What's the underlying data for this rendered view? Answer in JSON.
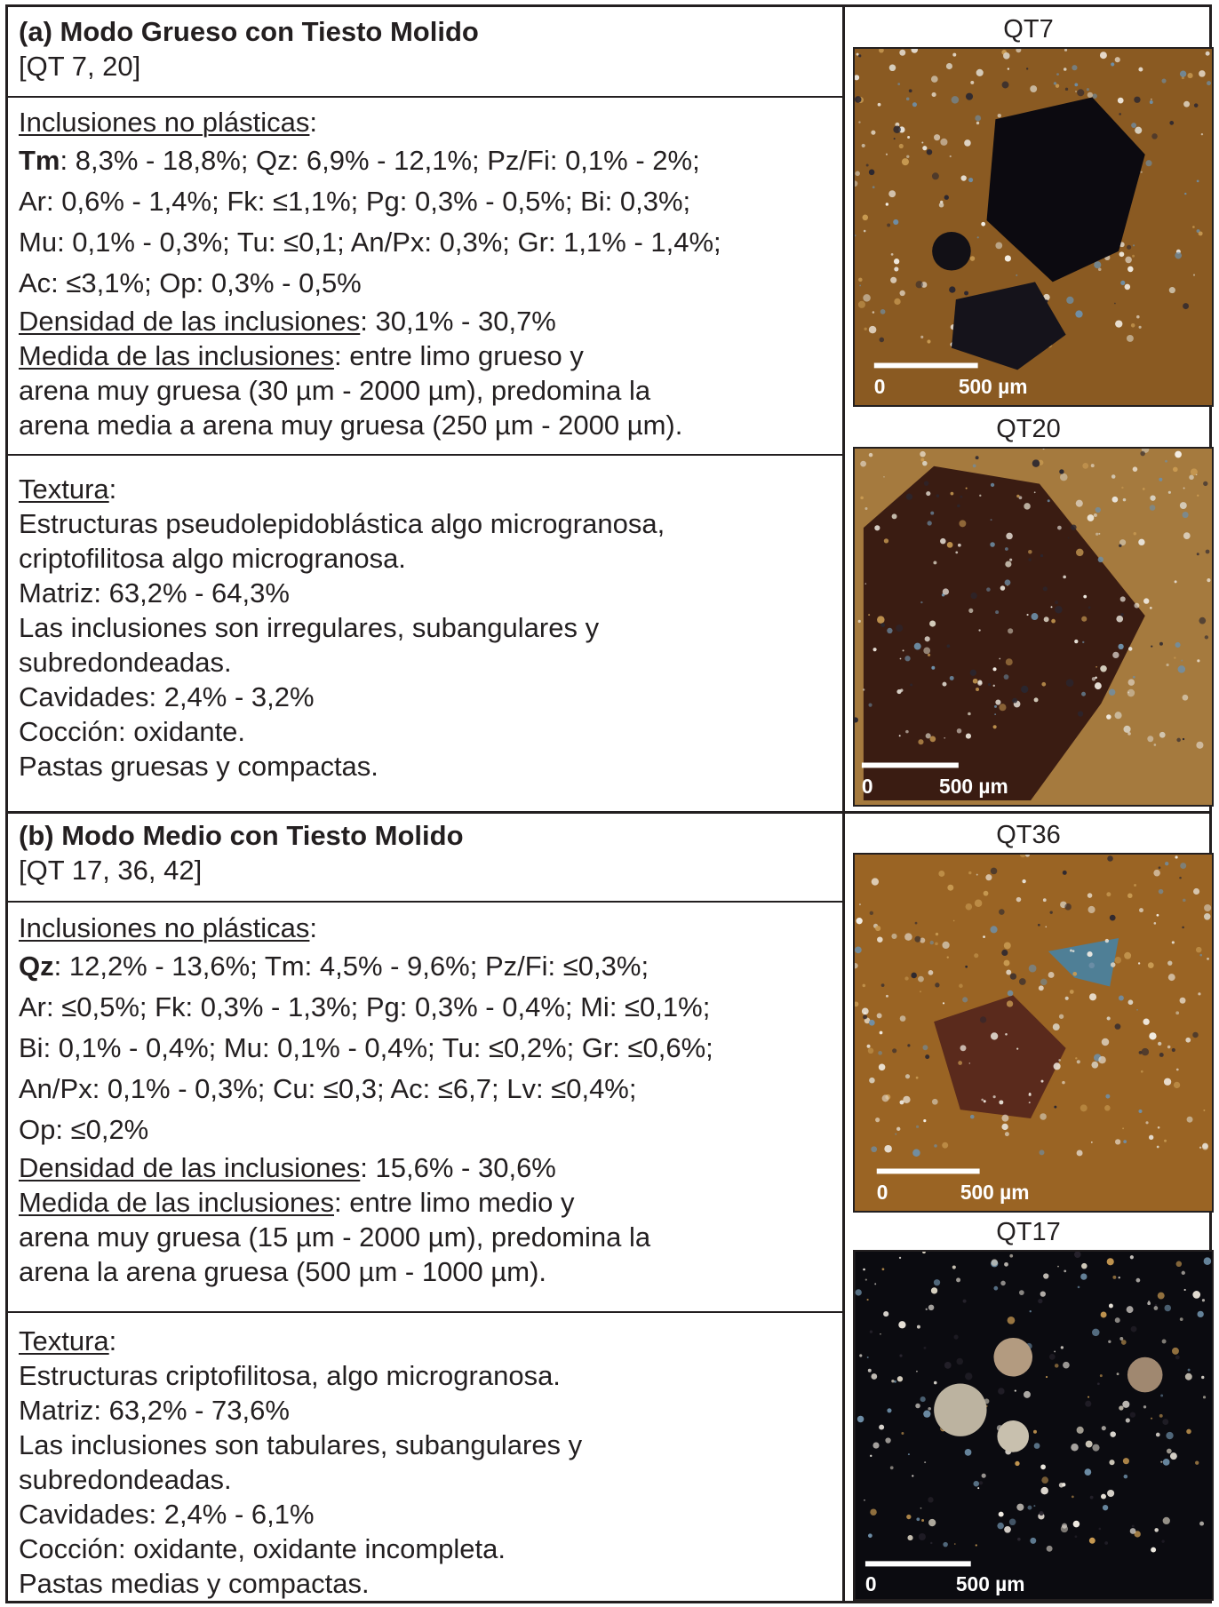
{
  "section_a": {
    "title": "(a) Modo Grueso con Tiesto Molido",
    "samples": "[QT 7, 20]",
    "inclusions": {
      "heading": "Inclusiones no plásticas",
      "first_key": "Tm",
      "line1_rest": ": 8,3% - 18,8%; Qz: 6,9% - 12,1%; Pz/Fi: 0,1% - 2%;",
      "line2": "Ar: 0,6% - 1,4%; Fk: ≤1,1%; Pg: 0,3% - 0,5%; Bi: 0,3%;",
      "line3": "Mu: 0,1% - 0,3%; Tu: ≤0,1; An/Px: 0,3%; Gr: 1,1% - 1,4%;",
      "line4": "Ac: ≤3,1%; Op: 0,3% - 0,5%",
      "density_label": "Densidad de las inclusiones",
      "density_value": ": 30,1% - 30,7%",
      "size_label": "Medida de las inclusiones",
      "size_line1": ": entre limo grueso y",
      "size_line2": "arena muy gruesa (30 µm - 2000 µm), predomina la",
      "size_line3": "arena media a arena muy gruesa (250 µm - 2000 µm)."
    },
    "texture": {
      "heading": "Textura",
      "line1": "Estructuras pseudolepidoblástica algo microgranosa,",
      "line2": "criptofilitosa algo microgranosa.",
      "line3": "Matriz: 63,2% - 64,3%",
      "line4": "Las inclusiones son irregulares, subangulares y",
      "line5": "subredondeadas.",
      "line6": "Cavidades: 2,4% - 3,2%",
      "line7": "Cocción: oxidante.",
      "line8": "Pastas gruesas y compactas."
    },
    "images": [
      {
        "caption": "QT7",
        "scale_zero": "0",
        "scale_value": "500 µm"
      },
      {
        "caption": "QT20",
        "scale_zero": "0",
        "scale_value": "500 µm"
      }
    ]
  },
  "section_b": {
    "title": "(b) Modo Medio con Tiesto Molido",
    "samples": "[QT 17, 36, 42]",
    "inclusions": {
      "heading": "Inclusiones no plásticas",
      "first_key": "Qz",
      "line1_rest": ": 12,2% - 13,6%; Tm: 4,5% - 9,6%; Pz/Fi: ≤0,3%;",
      "line2": "Ar: ≤0,5%; Fk: 0,3% - 1,3%; Pg: 0,3% - 0,4%; Mi: ≤0,1%;",
      "line3": "Bi: 0,1% - 0,4%; Mu: 0,1% - 0,4%; Tu: ≤0,2%; Gr: ≤0,6%;",
      "line4": "An/Px: 0,1% - 0,3%; Cu: ≤0,3; Ac: ≤6,7; Lv: ≤0,4%;",
      "line5": "Op: ≤0,2%",
      "density_label": "Densidad de las inclusiones",
      "density_value": ": 15,6% - 30,6%",
      "size_label": "Medida de las inclusiones",
      "size_line1": ": entre limo medio y",
      "size_line2": "arena muy gruesa (15 µm - 2000 µm), predomina la",
      "size_line3": "arena la arena gruesa (500 µm - 1000 µm)."
    },
    "texture": {
      "heading": "Textura",
      "line1": "Estructuras criptofilitosa, algo microgranosa.",
      "line2": "Matriz: 63,2% - 73,6%",
      "line3": "Las inclusiones son tabulares, subangulares y",
      "line4": "subredondeadas.",
      "line5": "Cavidades: 2,4% - 6,1%",
      "line6": "Cocción: oxidante, oxidante incompleta.",
      "line7": "Pastas medias y compactas."
    },
    "images": [
      {
        "caption": "QT36",
        "scale_zero": "0",
        "scale_value": "500 µm"
      },
      {
        "caption": "QT17",
        "scale_zero": "0",
        "scale_value": "500 µm"
      }
    ]
  }
}
